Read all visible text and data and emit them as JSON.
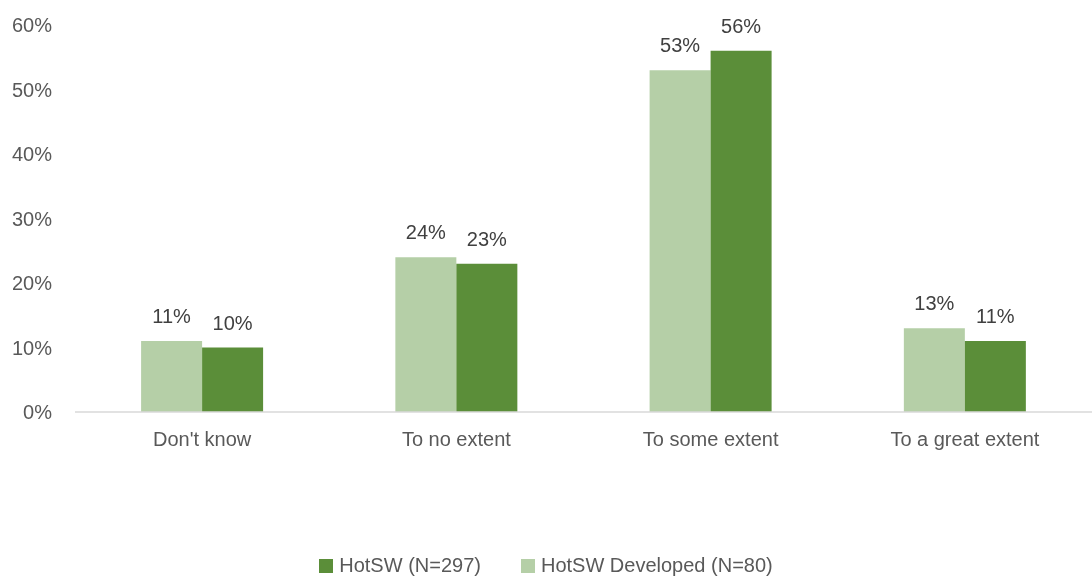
{
  "chart_data": {
    "type": "bar",
    "categories": [
      "Don't know",
      "To no extent",
      "To some extent",
      "To a great extent"
    ],
    "series": [
      {
        "name": "HotSW Developed (N=80)",
        "color": "#b5cfa7",
        "values": [
          11,
          24,
          53,
          13
        ],
        "value_labels": [
          "11%",
          "24%",
          "53%",
          "13%"
        ]
      },
      {
        "name": "HotSW (N=297)",
        "color": "#5b8e39",
        "values": [
          10,
          23,
          56,
          11
        ],
        "value_labels": [
          "10%",
          "23%",
          "56%",
          "11%"
        ]
      }
    ],
    "ylim": [
      0,
      60
    ],
    "yticks": [
      {
        "value": 0,
        "label": "0%"
      },
      {
        "value": 10,
        "label": "10%"
      },
      {
        "value": 20,
        "label": "20%"
      },
      {
        "value": 30,
        "label": "30%"
      },
      {
        "value": 40,
        "label": "40%"
      },
      {
        "value": 50,
        "label": "50%"
      },
      {
        "value": 60,
        "label": "60%"
      }
    ],
    "legend": "bottom"
  }
}
